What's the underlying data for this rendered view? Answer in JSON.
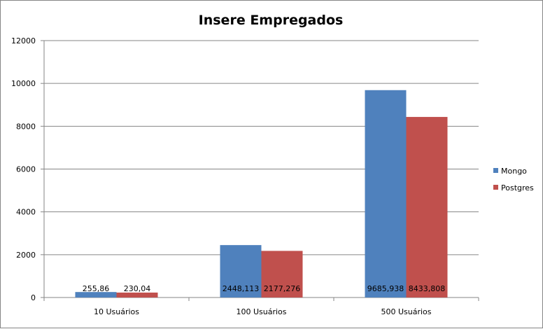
{
  "chart_data": {
    "type": "bar",
    "title": "Insere Empregados",
    "xlabel": "",
    "ylabel": "",
    "categories": [
      "10 Usuários",
      "100 Usuários",
      "500 Usuários"
    ],
    "series": [
      {
        "name": "Mongo",
        "color": "#4F81BD",
        "values": [
          255.86,
          2448.113,
          9685.938
        ],
        "labels": [
          "255,86",
          "2448,113",
          "9685,938"
        ]
      },
      {
        "name": "Postgres",
        "color": "#C0504D",
        "values": [
          230.04,
          2177.276,
          8433.808
        ],
        "labels": [
          "230,04",
          "2177,276",
          "8433,808"
        ]
      }
    ],
    "ylim": [
      0,
      12000
    ],
    "yticks": [
      0,
      2000,
      4000,
      6000,
      8000,
      10000,
      12000
    ],
    "grid": true,
    "legend_position": "right"
  }
}
